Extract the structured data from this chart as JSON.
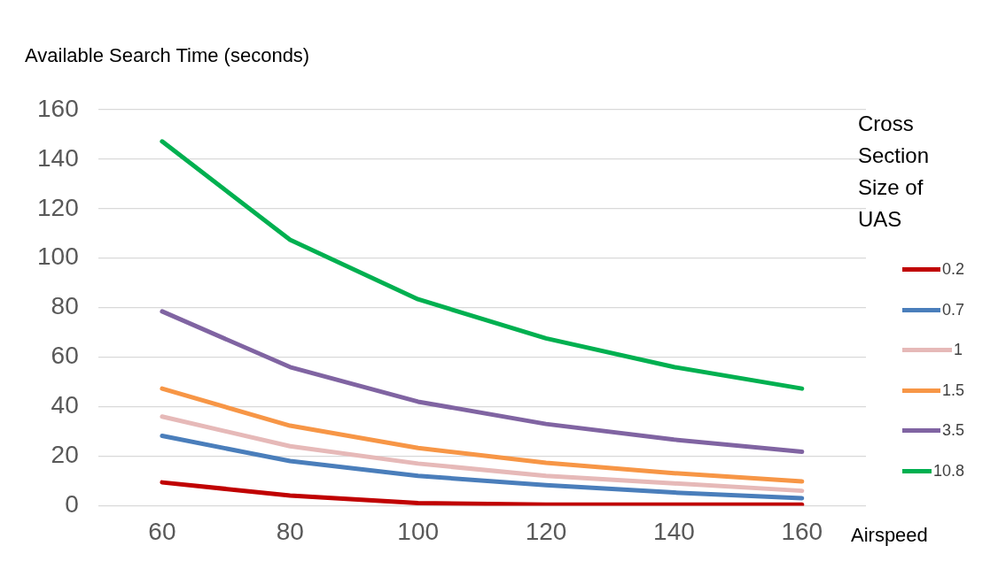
{
  "chart_data": {
    "type": "line",
    "ylabel": "Available Search Time (seconds)",
    "xlabel": "Airspeed",
    "legend_title": "Cross Section Size of UAS",
    "categories": [
      "60",
      "80",
      "100",
      "120",
      "140",
      "160"
    ],
    "ylim": [
      0,
      160
    ],
    "yticks": [
      0,
      20,
      40,
      60,
      80,
      100,
      120,
      140,
      160
    ],
    "grid": "y",
    "legend": "right",
    "marker": "none",
    "line_style": "solid",
    "series": [
      {
        "name": "0.2",
        "color": "#c00000",
        "values": [
          9.4,
          4.1,
          1,
          0.4,
          0.4,
          0.4
        ]
      },
      {
        "name": "0.7",
        "color": "#4a7ebb",
        "values": [
          28.2,
          18,
          12,
          8.3,
          5.3,
          3
        ]
      },
      {
        "name": "1",
        "color": "#e6b9b8",
        "values": [
          36,
          24,
          17,
          12,
          9,
          6
        ]
      },
      {
        "name": "1.5",
        "color": "#f79646",
        "values": [
          47.3,
          32.3,
          23.3,
          17.3,
          13.1,
          9.8
        ]
      },
      {
        "name": "3.5",
        "color": "#8064a2",
        "values": [
          78.5,
          56,
          42,
          33,
          26.7,
          21.8
        ]
      },
      {
        "name": "10.8",
        "color": "#00b050",
        "values": [
          147.2,
          107.4,
          83.4,
          67.6,
          56,
          47.3
        ]
      }
    ]
  }
}
